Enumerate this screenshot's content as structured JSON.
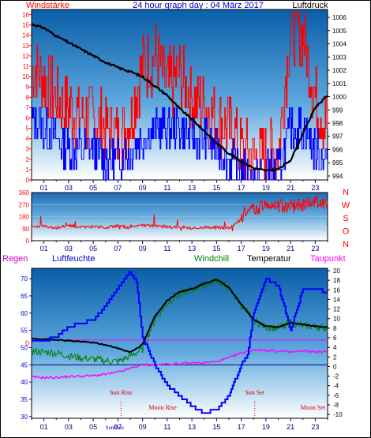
{
  "chart_data": [
    {
      "type": "line",
      "title": "24 hour graph day : 04 März 2017",
      "left_label": "Windstärke",
      "right_label": "Luftdruck",
      "x_tick_labels": [
        "01",
        "03",
        "05",
        "07",
        "09",
        "11",
        "13",
        "15",
        "17",
        "19",
        "21",
        "23"
      ],
      "x_tick_hours": [
        1,
        3,
        5,
        7,
        9,
        11,
        13,
        15,
        17,
        19,
        21,
        23
      ],
      "xlim": [
        0,
        24
      ],
      "y_left_ticks": [
        "0",
        "1",
        "2",
        "3",
        "4",
        "5",
        "6",
        "7",
        "8",
        "9",
        "10",
        "11",
        "12",
        "13",
        "14",
        "15",
        "16"
      ],
      "y_left_range": [
        0,
        16.5
      ],
      "y_right_ticks": [
        "994",
        "995",
        "996",
        "997",
        "998",
        "999",
        "1000",
        "1001",
        "1002",
        "1003",
        "1004",
        "1005",
        "1006"
      ],
      "y_right_range": [
        993.7,
        1006.6
      ],
      "series": [
        {
          "axis": "right",
          "color": "#000000",
          "x": [
            0,
            1,
            2,
            3,
            4,
            5,
            6,
            7,
            8,
            9,
            10,
            11,
            12,
            13,
            14,
            15,
            16,
            17,
            18,
            19,
            20,
            21,
            22,
            23,
            24
          ],
          "y": [
            1005.5,
            1005.2,
            1004.6,
            1004.1,
            1003.6,
            1003.1,
            1002.6,
            1002.2,
            1001.9,
            1001.5,
            1000.8,
            1000.1,
            999.1,
            998.3,
            997.4,
            996.5,
            995.7,
            995.1,
            994.6,
            994.4,
            994.5,
            995.2,
            997.2,
            999.2,
            1000.1
          ]
        },
        {
          "axis": "left",
          "color": "#ff0000",
          "x": [
            0,
            1,
            2,
            3,
            4,
            5,
            6,
            7,
            8,
            9,
            10,
            11,
            12,
            13,
            14,
            15,
            16,
            17,
            18,
            19,
            20,
            21,
            22,
            23,
            24
          ],
          "y": [
            11,
            10,
            8,
            7,
            6,
            6,
            5,
            4,
            6,
            11,
            12,
            9,
            10,
            8,
            7,
            6,
            5,
            3,
            2,
            2,
            3,
            15,
            14,
            8,
            5
          ]
        },
        {
          "axis": "left",
          "color": "#0000ff",
          "x": [
            0,
            1,
            2,
            3,
            4,
            5,
            6,
            7,
            8,
            9,
            10,
            11,
            12,
            13,
            14,
            15,
            16,
            17,
            18,
            19,
            20,
            21,
            22,
            23,
            24
          ],
          "y": [
            6,
            5,
            4,
            3,
            3,
            3,
            2,
            2,
            3,
            4,
            5,
            5,
            5,
            4,
            4,
            3,
            2,
            1,
            0,
            1,
            1,
            5,
            5,
            3,
            2
          ]
        }
      ]
    },
    {
      "type": "line",
      "direction_labels": [
        "N",
        "W",
        "S",
        "O",
        "N"
      ],
      "x_tick_labels": [
        "01",
        "03",
        "05",
        "07",
        "09",
        "11",
        "13",
        "15",
        "17",
        "19",
        "21",
        "23"
      ],
      "x_tick_hours": [
        1,
        3,
        5,
        7,
        9,
        11,
        13,
        15,
        17,
        19,
        21,
        23
      ],
      "xlim": [
        0,
        24
      ],
      "y_ticks": [
        "0",
        "90",
        "180",
        "270",
        "360"
      ],
      "ylim": [
        0,
        360
      ],
      "series": [
        {
          "color": "#ff0000",
          "x": [
            0,
            1,
            2,
            3,
            4,
            5,
            6,
            7,
            8,
            9,
            10,
            11,
            12,
            13,
            14,
            15,
            16,
            17,
            18,
            19,
            20,
            21,
            22,
            23,
            24
          ],
          "y": [
            100,
            110,
            95,
            115,
            100,
            105,
            100,
            110,
            95,
            115,
            110,
            105,
            100,
            95,
            100,
            100,
            95,
            160,
            230,
            270,
            260,
            250,
            270,
            300,
            260
          ]
        }
      ]
    },
    {
      "type": "line",
      "labels": {
        "regen": "Regen",
        "luftfeuchte": "Luftfeuchte",
        "windchill": "Windchill",
        "temperatur": "Temperatur",
        "taupunkt": "Taupunkt"
      },
      "zero_marker": "0",
      "x_tick_labels": [
        "01",
        "03",
        "05",
        "07",
        "09",
        "11",
        "13",
        "15",
        "17",
        "19",
        "21",
        "23"
      ],
      "x_tick_hours": [
        1,
        3,
        5,
        7,
        9,
        11,
        13,
        15,
        17,
        19,
        21,
        23
      ],
      "xlim": [
        0,
        24
      ],
      "y_left_ticks": [
        "30",
        "35",
        "40",
        "45",
        "50",
        "55",
        "60",
        "65",
        "70"
      ],
      "y_left_range": [
        29.5,
        73
      ],
      "y_right_ticks": [
        "-10",
        "-8",
        "-6",
        "-4",
        "-2",
        "0",
        "2",
        "4",
        "6",
        "8",
        "10",
        "12",
        "14",
        "16",
        "18",
        "20"
      ],
      "y_right_range": [
        -10.8,
        20.5
      ],
      "annotations": {
        "sun_rise": "Sun Rise",
        "moon_rise": "Moon Rise",
        "sun_set": "Sun Set",
        "moon_set": "Moon Set",
        "sun_rise_axis": "SunRise",
        "sun_rise_hour": 7.25,
        "sun_set_hour": 18.1
      },
      "series": [
        {
          "key": "luftfeuchte",
          "axis": "left",
          "color": "#0000ff",
          "x": [
            0,
            1,
            2,
            3,
            4,
            5,
            6,
            7,
            7.5,
            8,
            8.5,
            9,
            10,
            11,
            12,
            13,
            14,
            15,
            16,
            17,
            17.5,
            18,
            19,
            20,
            21,
            22,
            23,
            24
          ],
          "y": [
            52,
            52,
            53,
            56,
            57,
            58,
            62,
            67,
            70,
            72,
            69,
            53,
            45,
            39,
            36,
            33,
            31,
            32,
            36,
            45,
            48,
            60,
            70,
            68,
            55,
            67,
            67,
            66
          ]
        },
        {
          "key": "temperatur",
          "axis": "right",
          "color": "#000000",
          "x": [
            0,
            1,
            2,
            3,
            4,
            5,
            6,
            7,
            8,
            9,
            10,
            11,
            12,
            13,
            14,
            15,
            16,
            17,
            18,
            19,
            20,
            21,
            22,
            23,
            24
          ],
          "y": [
            5.8,
            5.7,
            5.6,
            5.4,
            5.2,
            5.0,
            4.5,
            3.8,
            3.0,
            4.6,
            10.5,
            13.8,
            15.6,
            16.2,
            17.3,
            18.2,
            16.5,
            13.0,
            9.8,
            8.4,
            8.2,
            9.1,
            8.8,
            8.4,
            8.2
          ]
        },
        {
          "key": "windchill",
          "axis": "right",
          "color": "#008000",
          "x": [
            0,
            1,
            2,
            3,
            4,
            5,
            6,
            7,
            8,
            9,
            10,
            11,
            12,
            13,
            14,
            15,
            16,
            17,
            18,
            19,
            20,
            21,
            22,
            23,
            24
          ],
          "y": [
            3.2,
            3.0,
            2.8,
            2.2,
            1.8,
            1.5,
            1.2,
            1.0,
            2.2,
            3.6,
            9.8,
            13.2,
            15.2,
            16.0,
            17.0,
            18.0,
            16.2,
            12.8,
            9.6,
            8.2,
            8.0,
            9.2,
            8.5,
            8.3,
            8.0
          ]
        },
        {
          "key": "taupunkt",
          "axis": "right",
          "color": "#ff00ff",
          "x": [
            0,
            1,
            2,
            3,
            4,
            5,
            6,
            7,
            8,
            9,
            10,
            11,
            12,
            13,
            14,
            15,
            16,
            17,
            18,
            19,
            20,
            21,
            22,
            23,
            24
          ],
          "y": [
            -2.2,
            -2.3,
            -2.3,
            -2.1,
            -2.0,
            -1.9,
            -1.6,
            -1.2,
            -0.4,
            0.4,
            0.3,
            0.5,
            0.6,
            0.7,
            0.8,
            1.0,
            1.8,
            2.8,
            3.5,
            3.4,
            3.2,
            3.0,
            3.2,
            3.1,
            3.0
          ]
        }
      ],
      "reference_lines": [
        {
          "axis": "left",
          "value": 52.2,
          "color": "#ff00ff"
        },
        {
          "axis": "left",
          "value": 45.0,
          "color": "#000080"
        }
      ]
    }
  ]
}
